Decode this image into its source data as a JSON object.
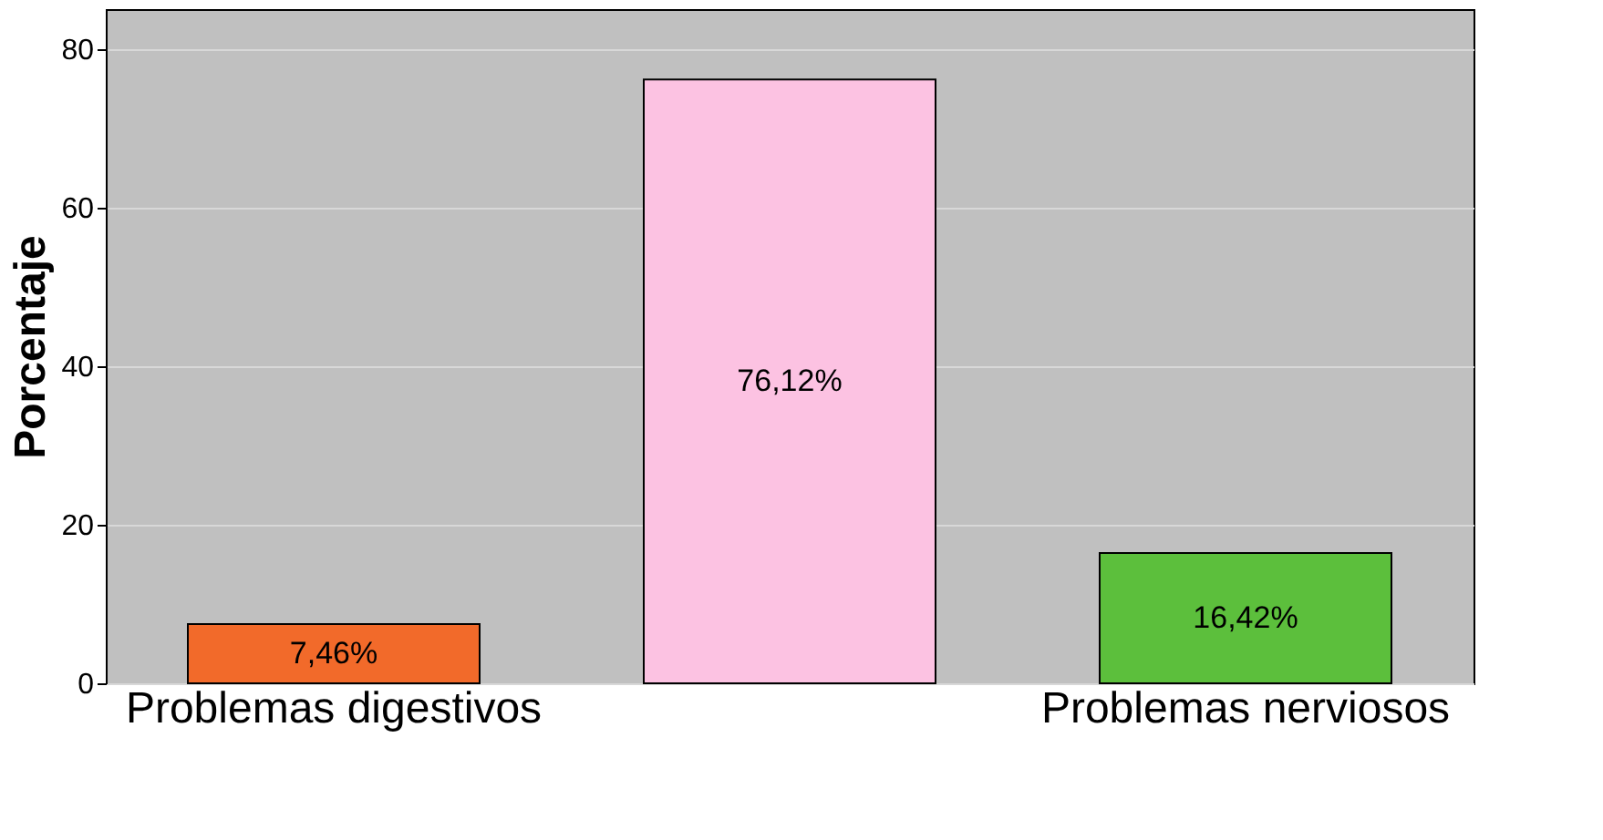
{
  "chart_data": {
    "type": "bar",
    "ylabel": "Porcentaje",
    "categories": [
      "Problemas digestivos",
      null,
      "Problemas nerviosos"
    ],
    "values": [
      7.46,
      76.12,
      16.42
    ],
    "colors": [
      "#f26a2a",
      "#fcc2e2",
      "#5cbf3c"
    ],
    "value_labels": [
      "7,46%",
      "76,12%",
      "16,42%"
    ],
    "ylim": [
      0,
      85
    ],
    "yticks": [
      0,
      20,
      40,
      60,
      80
    ],
    "grid": "y"
  }
}
